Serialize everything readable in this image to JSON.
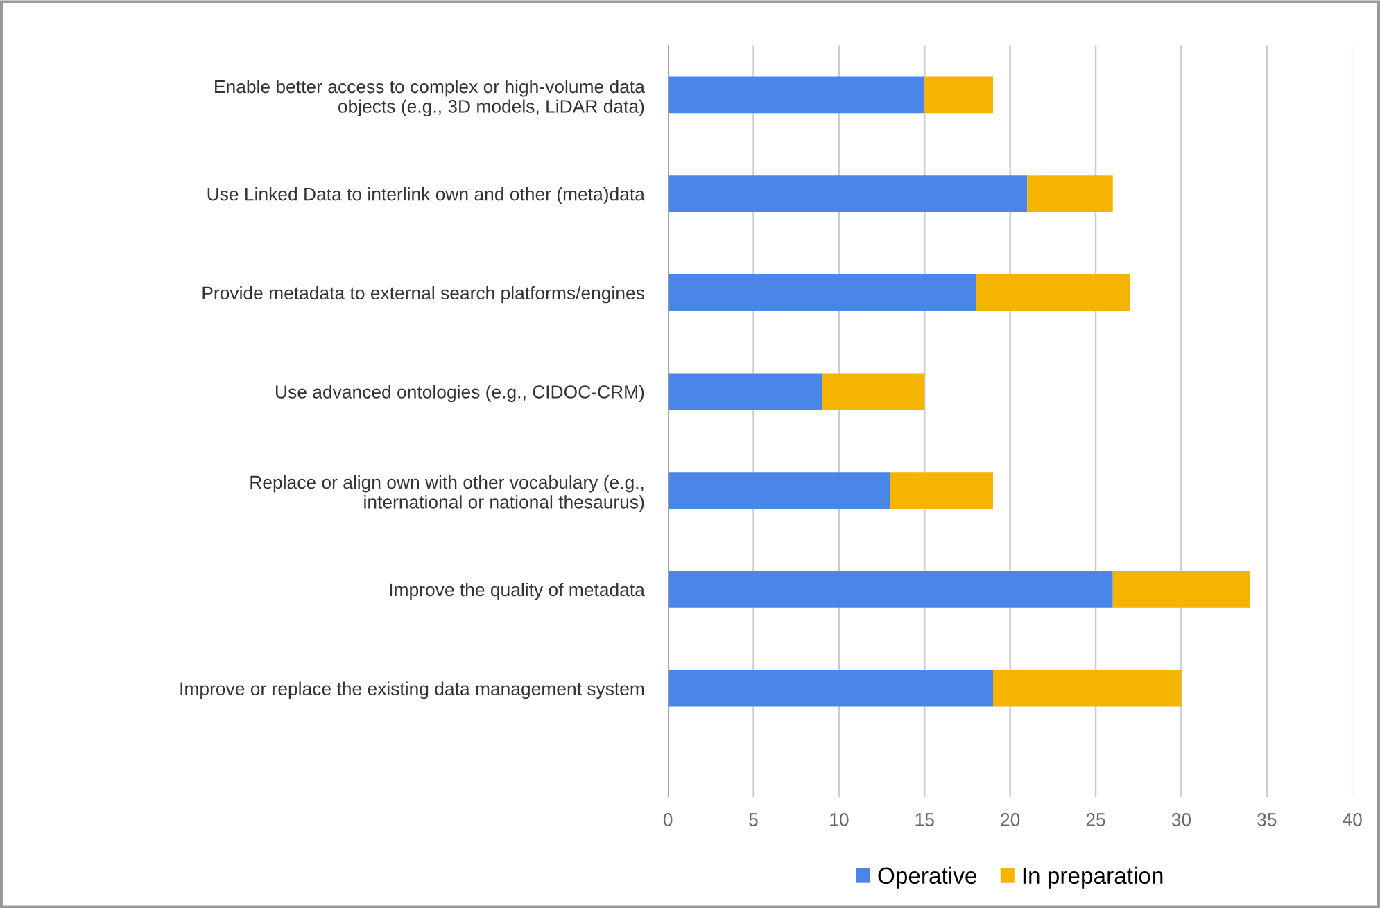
{
  "chart_data": {
    "type": "bar",
    "orientation": "horizontal",
    "stacked": true,
    "categories": [
      "Enable better access to complex or high-volume data\nobjects (e.g., 3D models, LiDAR data)",
      "Use Linked Data to interlink own and other (meta)data",
      "Provide metadata to external search platforms/engines",
      "Use advanced ontologies (e.g., CIDOC-CRM)",
      "Replace or align own with other vocabulary (e.g.,\ninternational or national thesaurus)",
      "Improve the quality of metadata",
      "Improve or replace the existing data management system"
    ],
    "series": [
      {
        "name": "Operative",
        "color": "#4a86e8",
        "values": [
          15,
          21,
          18,
          9,
          13,
          26,
          19
        ]
      },
      {
        "name": "In preparation",
        "color": "#f4b400",
        "values": [
          4,
          5,
          9,
          6,
          6,
          8,
          11
        ]
      }
    ],
    "xlim": [
      0,
      40
    ],
    "xticks": [
      0,
      5,
      10,
      15,
      20,
      25,
      30,
      35,
      40
    ],
    "grid": "x",
    "legend": "bottom"
  }
}
